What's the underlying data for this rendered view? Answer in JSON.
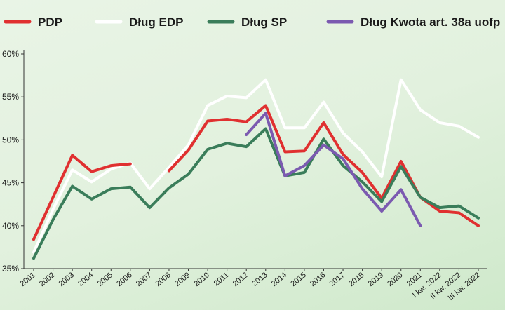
{
  "chart_data": {
    "type": "line",
    "title": "",
    "xlabel": "",
    "ylabel": "",
    "ylim": [
      35,
      60
    ],
    "y_ticks": [
      "35%",
      "40%",
      "45%",
      "50%",
      "55%",
      "60%"
    ],
    "categories": [
      "2001",
      "2002",
      "2003",
      "2004",
      "2005",
      "2006",
      "2007",
      "2008",
      "2009",
      "2010",
      "2011",
      "2012",
      "2013",
      "2014",
      "2015",
      "2016",
      "2017",
      "2018",
      "2019",
      "2020",
      "2021",
      "I kw. 2022",
      "II kw. 2022",
      "III kw. 2022"
    ],
    "legend_position": "top",
    "grid": false,
    "series": [
      {
        "name": "PDP",
        "color": "#e03030",
        "values": [
          38.4,
          43.3,
          48.2,
          46.3,
          47.0,
          47.2,
          null,
          46.4,
          48.8,
          52.2,
          52.4,
          52.1,
          54.0,
          48.6,
          48.7,
          52.0,
          48.3,
          46.2,
          43.2,
          47.5,
          43.3,
          41.7,
          41.5,
          40.0
        ]
      },
      {
        "name": "Dług EDP",
        "color": "#ffffff",
        "values": [
          36.9,
          41.9,
          46.5,
          45.1,
          46.6,
          47.3,
          44.3,
          46.8,
          49.4,
          54.0,
          55.1,
          54.9,
          57.0,
          51.4,
          51.4,
          54.4,
          50.8,
          48.6,
          45.7,
          57.0,
          53.5,
          52.0,
          51.6,
          50.3
        ]
      },
      {
        "name": "Dług SP",
        "color": "#3a7d5a",
        "values": [
          36.2,
          40.7,
          44.6,
          43.1,
          44.3,
          44.5,
          42.1,
          44.4,
          46.0,
          48.9,
          49.6,
          49.2,
          51.3,
          45.8,
          46.2,
          50.1,
          47.0,
          45.1,
          42.8,
          46.9,
          43.3,
          42.1,
          42.3,
          40.9
        ]
      },
      {
        "name": "Dług Kwota art. 38a uofp",
        "color": "#7b5ab0",
        "values": [
          null,
          null,
          null,
          null,
          null,
          null,
          null,
          null,
          null,
          null,
          null,
          50.6,
          53.1,
          45.8,
          47.0,
          49.4,
          47.8,
          44.3,
          41.7,
          44.2,
          40.0,
          null,
          null,
          null
        ]
      }
    ]
  }
}
